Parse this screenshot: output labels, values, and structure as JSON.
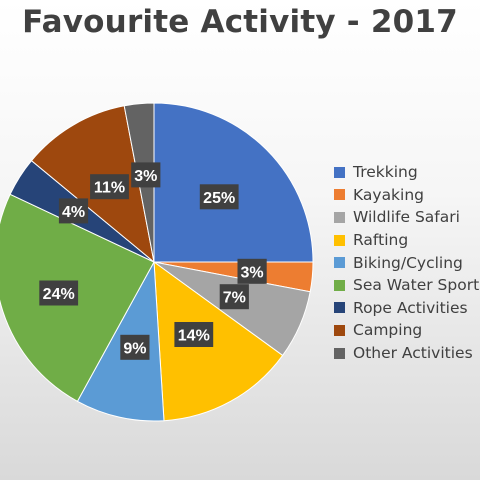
{
  "chart_data": {
    "type": "pie",
    "title": "Favourite Activity - 2017",
    "categories": [
      "Trekking",
      "Kayaking",
      "Wildlife Safari",
      "Rafting",
      "Biking/Cycling",
      "Sea Water Sports",
      "Rope Activities",
      "Camping",
      "Other Activities"
    ],
    "values": [
      25,
      3,
      7,
      14,
      9,
      24,
      4,
      11,
      3
    ],
    "data_labels": [
      "25%",
      "3%",
      "7%",
      "14%",
      "9%",
      "24%",
      "4%",
      "11%",
      "3%"
    ],
    "colors": [
      "#4472C4",
      "#ED7D31",
      "#A5A5A5",
      "#FFC000",
      "#5B9BD5",
      "#70AD47",
      "#264478",
      "#9E480E",
      "#636363"
    ],
    "legend_position": "right"
  }
}
